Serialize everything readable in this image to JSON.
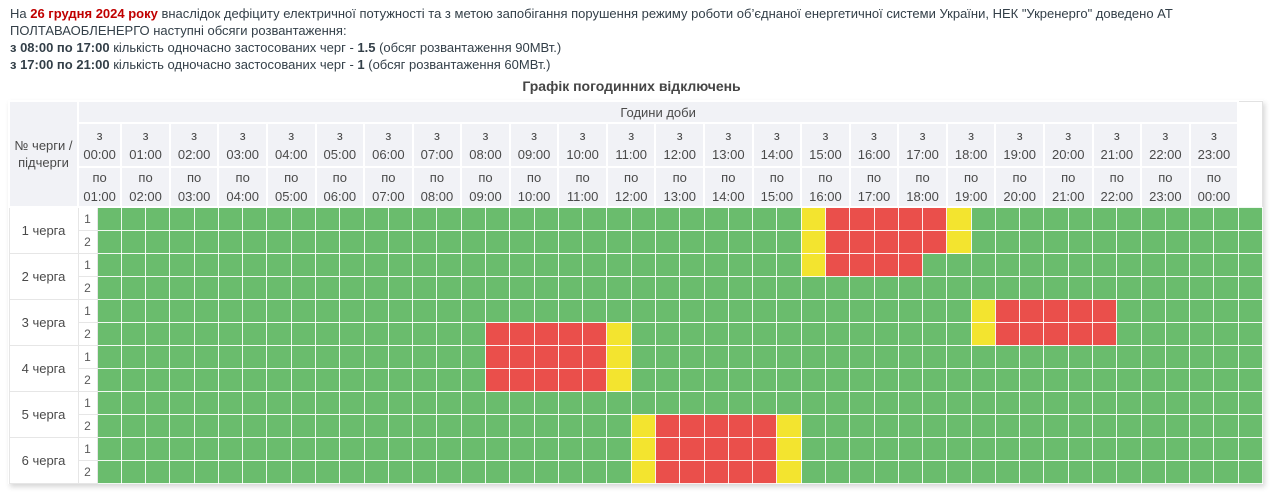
{
  "notice": {
    "prefix": "На ",
    "date": "26 грудня 2024 року",
    "line1_rest": " внаслідок дефіциту електричної потужності та з метою запобігання порушення режиму роботи об’єднаної енергетичної системи України, НЕК \"Укренерго\" доведено АТ ПОЛТАВАОБЛЕНЕРГО наступні обсяги розвантаження:",
    "line2": {
      "bold_time": "з 08:00 по 17:00",
      "mid": " кількість одночасно застосованих черг - ",
      "bold_num": "1.5",
      "rest": " (обсяг розвантаження 90МВт.)"
    },
    "line3": {
      "bold_time": "з 17:00 по 21:00",
      "mid": " кількість одночасно застосованих черг - ",
      "bold_num": "1",
      "rest": " (обсяг розвантаження 60МВт.)"
    }
  },
  "title": "Графік погодинних відключень",
  "table": {
    "corner_label": "№ черги / підчерги",
    "hours_header": "Години доби",
    "from_prefix": "з",
    "to_prefix": "по",
    "hours": [
      {
        "from": "00:00",
        "to": "01:00"
      },
      {
        "from": "01:00",
        "to": "02:00"
      },
      {
        "from": "02:00",
        "to": "03:00"
      },
      {
        "from": "03:00",
        "to": "04:00"
      },
      {
        "from": "04:00",
        "to": "05:00"
      },
      {
        "from": "05:00",
        "to": "06:00"
      },
      {
        "from": "06:00",
        "to": "07:00"
      },
      {
        "from": "07:00",
        "to": "08:00"
      },
      {
        "from": "08:00",
        "to": "09:00"
      },
      {
        "from": "09:00",
        "to": "10:00"
      },
      {
        "from": "10:00",
        "to": "11:00"
      },
      {
        "from": "11:00",
        "to": "12:00"
      },
      {
        "from": "12:00",
        "to": "13:00"
      },
      {
        "from": "13:00",
        "to": "14:00"
      },
      {
        "from": "14:00",
        "to": "15:00"
      },
      {
        "from": "15:00",
        "to": "16:00"
      },
      {
        "from": "16:00",
        "to": "17:00"
      },
      {
        "from": "17:00",
        "to": "18:00"
      },
      {
        "from": "18:00",
        "to": "19:00"
      },
      {
        "from": "19:00",
        "to": "20:00"
      },
      {
        "from": "20:00",
        "to": "21:00"
      },
      {
        "from": "21:00",
        "to": "22:00"
      },
      {
        "from": "22:00",
        "to": "23:00"
      },
      {
        "from": "23:00",
        "to": "00:00"
      }
    ],
    "colors": {
      "g": "#6abc6d",
      "y": "#f3e42f",
      "r": "#ea4f4b"
    },
    "states": {
      "g": "on",
      "y": "partial",
      "r": "off"
    },
    "queues": [
      {
        "label": "1 черга",
        "subs": [
          {
            "num": "1",
            "cells": "gggggggggggggggggggggggggggggyrrrrrygggggggggggg"
          },
          {
            "num": "2",
            "cells": "gggggggggggggggggggggggggggggyrrrrrygggggggggggg"
          }
        ]
      },
      {
        "label": "2 черга",
        "subs": [
          {
            "num": "1",
            "cells": "gggggggggggggggggggggggggggggyrrrrgggggggggggggg"
          },
          {
            "num": "2",
            "cells": "gggggggggggggggggggggggggggggggggggggggggggggggg"
          }
        ]
      },
      {
        "label": "3 черга",
        "subs": [
          {
            "num": "1",
            "cells": "ggggggggggggggggggggggggggggggggggggyrrrrrgggggg"
          },
          {
            "num": "2",
            "cells": "ggggggggggggggggrrrrryggggggggggggggyrrrrrgggggg"
          }
        ]
      },
      {
        "label": "4 черга",
        "subs": [
          {
            "num": "1",
            "cells": "ggggggggggggggggrrrrrygggggggggggggggggggggggggg"
          },
          {
            "num": "2",
            "cells": "ggggggggggggggggrrrrrygggggggggggggggggggggggggg"
          }
        ]
      },
      {
        "label": "5 черга",
        "subs": [
          {
            "num": "1",
            "cells": "gggggggggggggggggggggggggggggggggggggggggggggggg"
          },
          {
            "num": "2",
            "cells": "ggggggggggggggggggggggyrrrrryggggggggggggggggggg"
          }
        ]
      },
      {
        "label": "6 черга",
        "subs": [
          {
            "num": "1",
            "cells": "ggggggggggggggggggggggyrrrrryggggggggggggggggggg"
          },
          {
            "num": "2",
            "cells": "ggggggggggggggggggggggyrrrrryggggggggggggggggggg"
          }
        ]
      }
    ]
  }
}
